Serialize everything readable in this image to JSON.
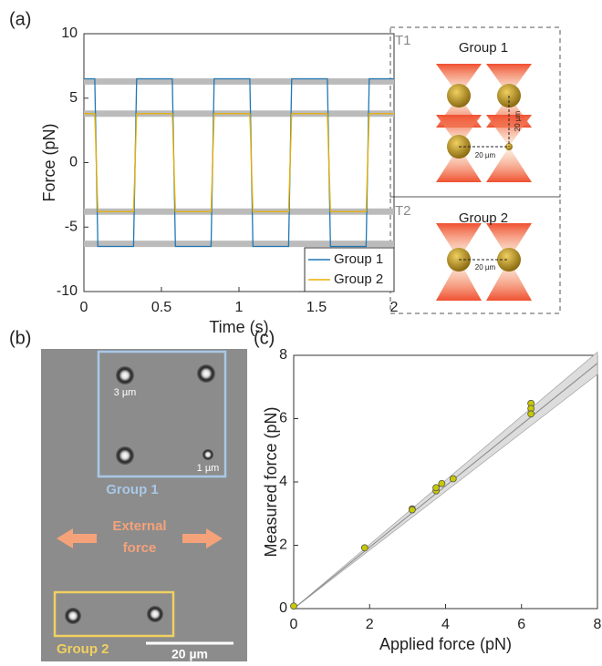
{
  "panel_labels": [
    "(a)",
    "(b)",
    "(c)"
  ],
  "chart_data": [
    {
      "type": "line",
      "xlabel": "Time (s)",
      "ylabel": "Force (pN)",
      "x": [
        0,
        0.07,
        0.09,
        0.32,
        0.34,
        0.57,
        0.59,
        0.82,
        0.84,
        1.07,
        1.09,
        1.32,
        1.34,
        1.57,
        1.59,
        1.82,
        1.84,
        2.0
      ],
      "series": [
        {
          "name": "Group 1",
          "color": "#1f77b4",
          "values": [
            6.5,
            6.5,
            -6.5,
            -6.5,
            6.5,
            6.5,
            -6.5,
            -6.5,
            6.5,
            6.5,
            -6.5,
            -6.5,
            6.5,
            6.5,
            -6.5,
            -6.5,
            6.5,
            6.5
          ]
        },
        {
          "name": "Group 2",
          "color": "#e8b000",
          "values": [
            3.8,
            3.8,
            -3.8,
            -3.8,
            3.8,
            3.8,
            -3.8,
            -3.8,
            3.8,
            3.8,
            -3.8,
            -3.8,
            3.8,
            3.8,
            -3.8,
            -3.8,
            3.8,
            3.8
          ]
        }
      ],
      "bands": [
        6.3,
        3.8,
        -3.8,
        -6.3
      ],
      "xlim": [
        0,
        2
      ],
      "xticks": [
        0,
        0.5,
        1,
        1.5,
        2
      ],
      "ylim": [
        -10,
        10
      ],
      "yticks": [
        -10,
        -5,
        0,
        5,
        10
      ],
      "legend": "lower-right"
    },
    {
      "type": "scatter",
      "xlabel": "Applied force (pN)",
      "ylabel": "Measured force (pN)",
      "x": [
        0,
        1.87,
        3.12,
        3.12,
        3.75,
        3.75,
        3.9,
        4.2,
        6.25,
        6.25,
        6.25
      ],
      "values": [
        0.08,
        1.92,
        3.15,
        3.12,
        3.72,
        3.82,
        3.95,
        4.1,
        6.48,
        6.32,
        6.15
      ],
      "color": "#c8c800",
      "fit_line": {
        "x": [
          0,
          8
        ],
        "y": [
          0,
          7.75
        ]
      },
      "band": {
        "x": [
          0,
          8
        ],
        "upper": [
          0,
          8.1
        ],
        "lower": [
          0,
          7.4
        ]
      },
      "xlim": [
        0,
        8
      ],
      "xticks": [
        0,
        2,
        4,
        6,
        8
      ],
      "ylim": [
        0,
        8
      ],
      "yticks": [
        0,
        2,
        4,
        6,
        8
      ]
    }
  ],
  "diagram": {
    "t1": {
      "label": "T1",
      "title": "Group 1",
      "scale_vertical": "20 µm",
      "scale_horizontal": "20 µm"
    },
    "t2": {
      "label": "T2",
      "title": "Group 2",
      "scale": "20 µm"
    }
  },
  "micrograph": {
    "bead_large": "3 µm",
    "bead_small": "1 µm",
    "group1": "Group 1",
    "force_line1": "External",
    "force_line2": "force",
    "group2": "Group 2",
    "scale_bar": "20 µm"
  }
}
